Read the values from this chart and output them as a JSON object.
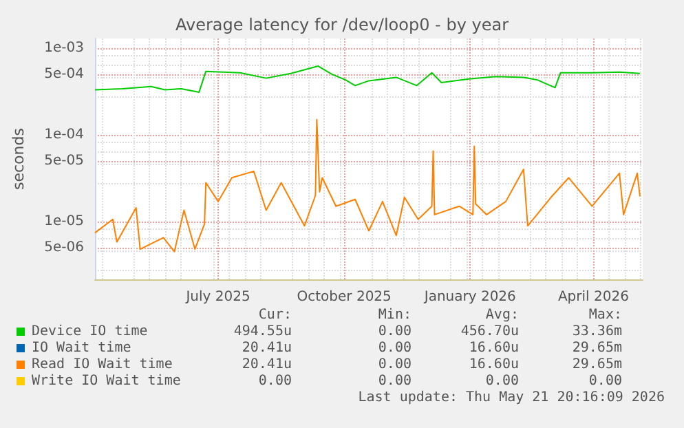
{
  "chart_data": {
    "type": "line",
    "title": "Average latency for /dev/loop0 - by year",
    "ylabel": "seconds",
    "log": "y",
    "grid": true,
    "legend": "bottom left",
    "marker": "none",
    "line_style": "solid",
    "xlim": [
      "2025-04-02",
      "2026-05-07"
    ],
    "xticks": [
      {
        "value": "2025-07-01",
        "label": "July 2025"
      },
      {
        "value": "2025-10-01",
        "label": "October 2025"
      },
      {
        "value": "2026-01-01",
        "label": "January 2026"
      },
      {
        "value": "2026-04-01",
        "label": "April 2026"
      }
    ],
    "ylim": [
      2.15e-06,
      0.00129
    ],
    "yticks": [
      {
        "value": 5e-06,
        "label": "5e-06"
      },
      {
        "value": 1e-05,
        "label": "1e-05"
      },
      {
        "value": 5e-05,
        "label": "5e-05"
      },
      {
        "value": 0.0001,
        "label": "1e-04"
      },
      {
        "value": 0.0005,
        "label": "5e-04"
      },
      {
        "value": 0.001,
        "label": "1e-03"
      }
    ],
    "series": [
      {
        "name": "Device IO time",
        "color": "#00cc00",
        "x": [
          "2025-04-02",
          "2025-04-22",
          "2025-05-13",
          "2025-05-23",
          "2025-06-04",
          "2025-06-17",
          "2025-06-22",
          "2025-07-17",
          "2025-08-05",
          "2025-08-23",
          "2025-09-12",
          "2025-09-22",
          "2025-10-02",
          "2025-10-09",
          "2025-10-19",
          "2025-11-08",
          "2025-11-23",
          "2025-12-04",
          "2025-12-11",
          "2025-12-31",
          "2026-01-20",
          "2026-02-09",
          "2026-02-19",
          "2026-03-04",
          "2026-03-08",
          "2026-03-31",
          "2026-04-20",
          "2026-05-05"
        ],
        "values": [
          0.00033,
          0.00034,
          0.00036,
          0.00033,
          0.00034,
          0.00031,
          0.00054,
          0.00052,
          0.00045,
          0.00051,
          0.00062,
          0.0005,
          0.00043,
          0.00037,
          0.00042,
          0.00046,
          0.00037,
          0.00052,
          0.0004,
          0.00044,
          0.00047,
          0.00046,
          0.00043,
          0.00035,
          0.00052,
          0.00052,
          0.00053,
          0.00051
        ]
      },
      {
        "name": "IO Wait time",
        "color": "#0066b3"
      },
      {
        "name": "Read IO Wait time",
        "color": "#ff8000",
        "x": [
          "2025-04-02",
          "2025-04-15",
          "2025-04-18",
          "2025-05-02",
          "2025-05-05",
          "2025-05-22",
          "2025-05-30",
          "2025-06-06",
          "2025-06-14",
          "2025-06-21",
          "2025-06-22",
          "2025-07-01",
          "2025-07-11",
          "2025-07-27",
          "2025-08-05",
          "2025-08-16",
          "2025-09-02",
          "2025-09-10",
          "2025-09-11",
          "2025-09-13",
          "2025-09-15",
          "2025-09-25",
          "2025-10-09",
          "2025-10-19",
          "2025-10-29",
          "2025-11-08",
          "2025-11-14",
          "2025-11-24",
          "2025-12-04",
          "2025-12-05",
          "2025-12-06",
          "2025-12-24",
          "2026-01-03",
          "2026-01-04",
          "2026-01-05",
          "2026-01-13",
          "2026-01-27",
          "2026-02-09",
          "2026-02-12",
          "2026-03-01",
          "2026-03-14",
          "2026-03-31",
          "2026-04-20",
          "2026-04-23",
          "2026-05-03",
          "2026-05-05"
        ],
        "values": [
          7.4e-06,
          1.06e-05,
          5.8e-06,
          1.44e-05,
          4.8e-06,
          6.5e-06,
          4.5e-06,
          1.35e-05,
          4.8e-06,
          9.4e-06,
          2.8e-05,
          1.7e-05,
          3.2e-05,
          3.8e-05,
          1.35e-05,
          2.8e-05,
          8.9e-06,
          2e-05,
          0.00015,
          2.2e-05,
          3.2e-05,
          1.5e-05,
          1.8e-05,
          7.8e-06,
          1.7e-05,
          6.9e-06,
          1.9e-05,
          1.06e-05,
          1.5e-05,
          6.5e-05,
          1.2e-05,
          1.5e-05,
          1.2e-05,
          7.4e-05,
          1.6e-05,
          1.2e-05,
          1.7e-05,
          4e-05,
          8.9e-06,
          1.9e-05,
          3.2e-05,
          1.5e-05,
          3.6e-05,
          1.2e-05,
          3.6e-05,
          1.95e-05
        ]
      },
      {
        "name": "Write IO Wait time",
        "color": "#ffcc00"
      }
    ],
    "annotations": [
      "Cur:",
      "Min:",
      "Avg:",
      "Max:",
      "494.55u",
      "0.00",
      "456.70u",
      "33.36m",
      "20.41u",
      "0.00",
      "16.60u",
      "29.65m",
      "20.41u",
      "0.00",
      "16.60u",
      "29.65m",
      "0.00",
      "0.00",
      "0.00",
      "0.00",
      "Last update: Thu May 21 20:16:09 2026"
    ]
  }
}
